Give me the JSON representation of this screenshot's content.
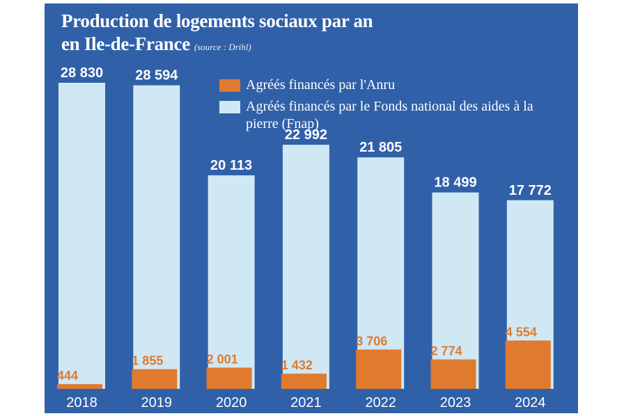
{
  "colors": {
    "background": "#3060a8",
    "light_series": "#cfe8f3",
    "orange_series": "#e07a2e",
    "text": "#ffffff"
  },
  "chart_data": {
    "type": "bar",
    "title": "Production de logements sociaux par an",
    "title_line2": "en Ile-de-France",
    "source": "(source : Drihl)",
    "xlabel": "",
    "ylabel": "",
    "categories": [
      "2018",
      "2019",
      "2020",
      "2021",
      "2022",
      "2023",
      "2024"
    ],
    "series": [
      {
        "name": "Agréés financés par l'Anru",
        "values": [
          444,
          1855,
          2001,
          1432,
          3706,
          2774,
          4554
        ],
        "labels": [
          "444",
          "1 855",
          "2 001",
          "1 432",
          "3 706",
          "2 774",
          "4 554"
        ],
        "color": "#e07a2e"
      },
      {
        "name": "Agréés financés par le Fonds national des aides à la pierre (Fnap)",
        "values": [
          28830,
          28594,
          20113,
          22992,
          21805,
          18499,
          17772
        ],
        "labels": [
          "28 830",
          "28 594",
          "20 113",
          "22 992",
          "21 805",
          "18 499",
          "17 772"
        ],
        "color": "#cfe8f3"
      }
    ],
    "ylim": [
      0,
      28830
    ],
    "grid": false,
    "legend_position": "top-right"
  }
}
